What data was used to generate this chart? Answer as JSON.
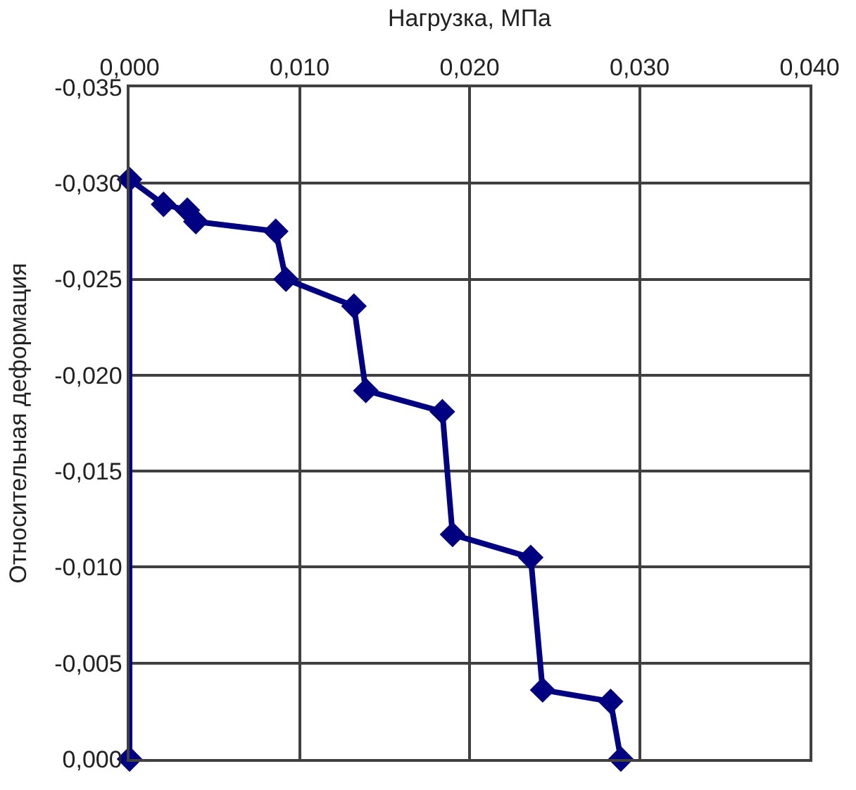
{
  "chart_data": {
    "type": "line",
    "xlabel": "Нагрузка, МПа",
    "ylabel": "Относительная деформация",
    "x": [
      0,
      0,
      0.002,
      0.0034,
      0.0039,
      0.0086,
      0.0092,
      0.0132,
      0.0139,
      0.0184,
      0.019,
      0.0236,
      0.0243,
      0.0283,
      0.0289
    ],
    "series": [
      {
        "color": "#000080",
        "values": [
          0,
          -0.0302,
          -0.0289,
          -0.0286,
          -0.028,
          -0.0275,
          -0.025,
          -0.0236,
          -0.0192,
          -0.0181,
          -0.0117,
          -0.0105,
          -0.0036,
          -0.003,
          0
        ]
      }
    ],
    "xlim": [
      0,
      0.04
    ],
    "xticks": [
      {
        "value": 0,
        "label": "0,000"
      },
      {
        "value": 0.01,
        "label": "0,010"
      },
      {
        "value": 0.02,
        "label": "0,020"
      },
      {
        "value": 0.03,
        "label": "0,030"
      },
      {
        "value": 0.04,
        "label": "0,040"
      }
    ],
    "ylim": [
      0,
      -0.035
    ],
    "yticks": [
      {
        "value": 0,
        "label": "0,000"
      },
      {
        "value": -0.005,
        "label": "-0,005"
      },
      {
        "value": -0.01,
        "label": "-0,010"
      },
      {
        "value": -0.015,
        "label": "-0,015"
      },
      {
        "value": -0.02,
        "label": "-0,020"
      },
      {
        "value": -0.025,
        "label": "-0,025"
      },
      {
        "value": -0.03,
        "label": "-0,030"
      },
      {
        "value": -0.035,
        "label": "-0,035"
      }
    ],
    "grid": true,
    "marker": "diamond",
    "line_style": "solid",
    "legend": false
  }
}
